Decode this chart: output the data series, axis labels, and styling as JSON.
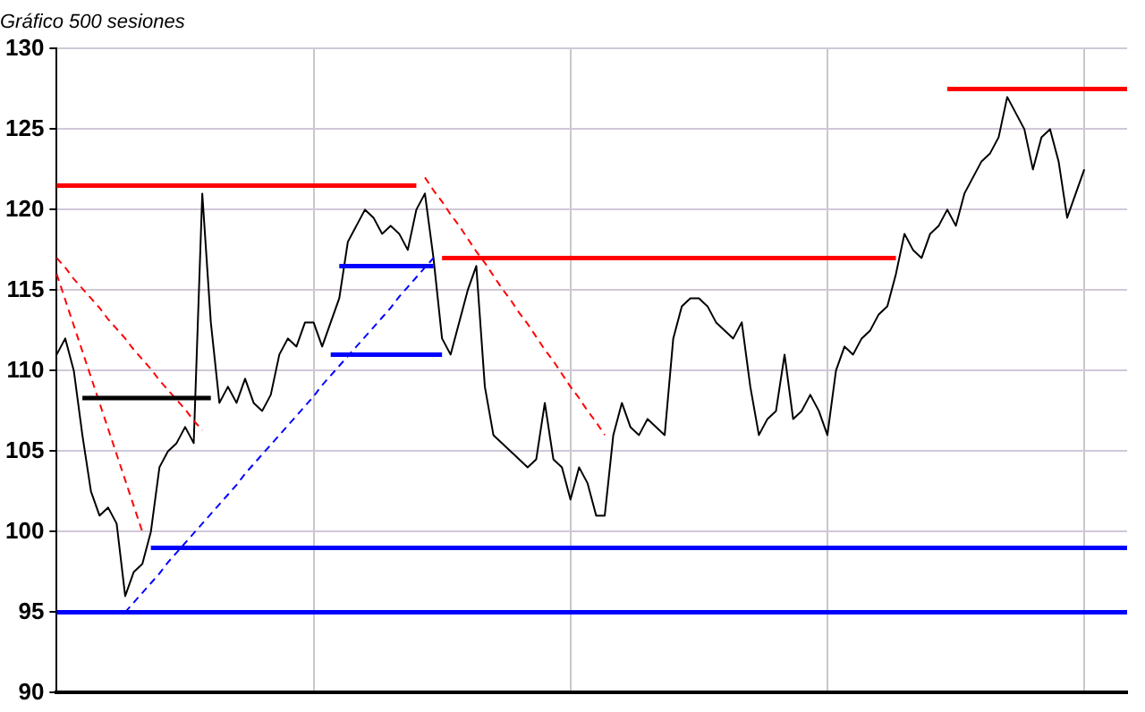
{
  "chart_data": {
    "type": "line",
    "title": "Gráfico 500 sesiones",
    "categories": [
      null,
      null,
      null,
      null,
      null,
      null,
      null,
      null,
      null,
      null,
      null,
      null,
      null,
      null,
      null,
      null,
      null,
      null,
      null,
      null,
      null,
      null,
      null,
      null,
      null,
      null,
      null,
      null,
      null,
      null,
      null,
      null,
      null,
      null,
      null,
      null,
      null,
      null,
      null,
      null,
      null,
      null,
      null,
      null,
      null,
      null,
      null,
      null,
      null,
      null,
      null,
      null,
      null,
      null,
      null,
      null,
      null,
      null,
      null,
      null,
      null,
      null,
      null,
      null,
      null,
      null,
      null,
      null,
      null,
      null,
      null,
      null,
      null,
      null,
      null,
      null,
      null,
      null,
      null,
      null,
      null,
      null,
      null,
      null,
      null,
      null,
      null,
      null,
      null,
      null,
      null,
      null,
      null,
      null,
      null,
      null,
      null,
      null,
      null,
      null,
      null,
      null,
      null,
      null,
      null,
      null,
      null,
      null,
      null,
      null,
      null,
      null,
      null,
      null,
      null,
      null,
      null,
      null,
      null,
      null,
      null,
      null,
      null,
      null,
      null,
      null
    ],
    "series": [
      {
        "color": "#000000",
        "values": [
          111,
          112,
          110,
          106,
          102.5,
          101,
          101.5,
          100.5,
          96,
          97.5,
          98,
          100,
          104,
          105,
          105.5,
          106.5,
          105.5,
          121,
          113,
          108,
          109,
          108,
          109.5,
          108,
          107.5,
          108.5,
          111,
          112,
          111.5,
          113,
          113,
          111.5,
          113,
          114.5,
          118,
          119,
          120,
          119.5,
          118.5,
          119,
          118.5,
          117.5,
          120,
          121,
          117,
          112,
          111,
          113,
          115,
          116.5,
          109,
          106,
          105.5,
          105,
          104.5,
          104,
          104.5,
          108,
          104.5,
          104,
          102,
          104,
          103,
          101,
          101,
          106,
          108,
          106.5,
          106,
          107,
          106.5,
          106,
          112,
          114,
          114.5,
          114.5,
          114,
          113,
          112.5,
          112,
          113,
          109,
          106,
          107,
          107.5,
          111,
          107,
          107.5,
          108.5,
          107.5,
          106,
          110,
          111.5,
          111,
          112,
          112.5,
          113.5,
          114,
          116,
          118.5,
          117.5,
          117,
          118.5,
          119,
          120,
          119,
          121,
          122,
          123,
          123.5,
          124.5,
          127,
          126,
          125,
          122.5,
          124.5,
          125,
          123,
          119.5,
          121,
          122.5,
          null,
          null,
          null,
          null,
          null
        ]
      },
      {
        "color": "#ff0000",
        "values": [
          121.5,
          121.5,
          121.5,
          121.5,
          121.5,
          121.5,
          121.5,
          121.5,
          121.5,
          121.5,
          121.5,
          121.5,
          121.5,
          121.5,
          121.5,
          121.5,
          121.5,
          121.5,
          121.5,
          121.5,
          121.5,
          121.5,
          121.5,
          121.5,
          121.5,
          121.5,
          121.5,
          121.5,
          121.5,
          121.5,
          121.5,
          121.5,
          121.5,
          121.5,
          121.5,
          121.5,
          121.5,
          121.5,
          121.5,
          121.5,
          121.5,
          121.5,
          121.5,
          null,
          null,
          null,
          null,
          null,
          null,
          null,
          null,
          null,
          null,
          null,
          null,
          null,
          null,
          null,
          null,
          null,
          null,
          null,
          null,
          null,
          null,
          null,
          null,
          null,
          null,
          null,
          null,
          null,
          null,
          null,
          null,
          null,
          null,
          null,
          null,
          null,
          null,
          null,
          null,
          null,
          null,
          null,
          null,
          null,
          null,
          null,
          null,
          null,
          null,
          null,
          null,
          null,
          null,
          null,
          null,
          null,
          null,
          null,
          null,
          null,
          null,
          null,
          null,
          null,
          null,
          null,
          null,
          null,
          null,
          null,
          null,
          null,
          null,
          null,
          null,
          null,
          null,
          null,
          null,
          null,
          null,
          null
        ]
      },
      {
        "color": "#ff0000",
        "values": [
          null,
          null,
          null,
          null,
          null,
          null,
          null,
          null,
          null,
          null,
          null,
          null,
          null,
          null,
          null,
          null,
          null,
          null,
          null,
          null,
          null,
          null,
          null,
          null,
          null,
          null,
          null,
          null,
          null,
          null,
          null,
          null,
          null,
          null,
          null,
          null,
          null,
          null,
          null,
          null,
          null,
          null,
          null,
          null,
          null,
          117,
          117,
          117,
          117,
          117,
          117,
          117,
          117,
          117,
          117,
          117,
          117,
          117,
          117,
          117,
          117,
          117,
          117,
          117,
          117,
          117,
          117,
          117,
          117,
          117,
          117,
          117,
          117,
          117,
          117,
          117,
          117,
          117,
          117,
          117,
          117,
          117,
          117,
          117,
          117,
          117,
          117,
          117,
          117,
          117,
          117,
          117,
          117,
          117,
          117,
          117,
          117,
          117,
          117,
          null,
          null,
          null,
          null,
          null,
          null,
          null,
          null,
          null,
          null,
          null,
          null,
          null,
          null,
          null,
          null,
          null,
          null,
          null,
          null,
          null,
          null,
          null,
          null,
          null,
          null,
          null
        ]
      },
      {
        "color": "#ff0000",
        "values": [
          null,
          null,
          null,
          null,
          null,
          null,
          null,
          null,
          null,
          null,
          null,
          null,
          null,
          null,
          null,
          null,
          null,
          null,
          null,
          null,
          null,
          null,
          null,
          null,
          null,
          null,
          null,
          null,
          null,
          null,
          null,
          null,
          null,
          null,
          null,
          null,
          null,
          null,
          null,
          null,
          null,
          null,
          null,
          null,
          null,
          null,
          null,
          null,
          null,
          null,
          null,
          null,
          null,
          null,
          null,
          null,
          null,
          null,
          null,
          null,
          null,
          null,
          null,
          null,
          null,
          null,
          null,
          null,
          null,
          null,
          null,
          null,
          null,
          null,
          null,
          null,
          null,
          null,
          null,
          null,
          null,
          null,
          null,
          null,
          null,
          null,
          null,
          null,
          null,
          null,
          null,
          null,
          null,
          null,
          null,
          null,
          null,
          null,
          null,
          null,
          null,
          null,
          null,
          null,
          127.5,
          127.5,
          127.5,
          127.5,
          127.5,
          127.5,
          127.5,
          127.5,
          127.5,
          127.5,
          127.5,
          127.5,
          127.5,
          127.5,
          127.5,
          127.5,
          127.5,
          127.5,
          127.5,
          127.5,
          127.5,
          127.5
        ]
      },
      {
        "color": "#0000ff",
        "values": [
          null,
          null,
          null,
          null,
          null,
          null,
          null,
          null,
          null,
          null,
          null,
          null,
          null,
          null,
          null,
          null,
          null,
          null,
          null,
          null,
          null,
          null,
          null,
          null,
          null,
          null,
          null,
          null,
          null,
          null,
          null,
          null,
          111,
          111,
          111,
          111,
          111,
          111,
          111,
          111,
          111,
          111,
          111,
          111,
          111,
          111,
          null,
          null,
          null,
          null,
          null,
          null,
          null,
          null,
          null,
          null,
          null,
          null,
          null,
          null,
          null,
          null,
          null,
          null,
          null,
          null,
          null,
          null,
          null,
          null,
          null,
          null,
          null,
          null,
          null,
          null,
          null,
          null,
          null,
          null,
          null,
          null,
          null,
          null,
          null,
          null,
          null,
          null,
          null,
          null,
          null,
          null,
          null,
          null,
          null,
          null,
          null,
          null,
          null,
          null,
          null,
          null,
          null,
          null,
          null,
          null,
          null,
          null,
          null,
          null,
          null,
          null,
          null,
          null,
          null,
          null,
          null,
          null,
          null,
          null,
          null,
          null,
          null,
          null,
          null,
          null
        ]
      },
      {
        "color": "#0000ff",
        "values": [
          null,
          null,
          null,
          null,
          null,
          null,
          null,
          null,
          null,
          null,
          null,
          null,
          null,
          null,
          null,
          null,
          null,
          null,
          null,
          null,
          null,
          null,
          null,
          null,
          null,
          null,
          null,
          null,
          null,
          null,
          null,
          null,
          null,
          116.5,
          116.5,
          116.5,
          116.5,
          116.5,
          116.5,
          116.5,
          116.5,
          116.5,
          116.5,
          116.5,
          116.5,
          null,
          null,
          null,
          null,
          null,
          null,
          null,
          null,
          null,
          null,
          null,
          null,
          null,
          null,
          null,
          null,
          null,
          null,
          null,
          null,
          null,
          null,
          null,
          null,
          null,
          null,
          null,
          null,
          null,
          null,
          null,
          null,
          null,
          null,
          null,
          null,
          null,
          null,
          null,
          null,
          null,
          null,
          null,
          null,
          null,
          null,
          null,
          null,
          null,
          null,
          null,
          null,
          null,
          null,
          null,
          null,
          null,
          null,
          null,
          null,
          null,
          null,
          null,
          null,
          null,
          null,
          null,
          null,
          null,
          null,
          null,
          null,
          null,
          null,
          null,
          null,
          null,
          null,
          null,
          null,
          null
        ]
      },
      {
        "color": "#0000ff",
        "values": [
          null,
          null,
          null,
          null,
          null,
          null,
          null,
          null,
          null,
          null,
          null,
          99,
          99,
          99,
          99,
          99,
          99,
          99,
          99,
          99,
          99,
          99,
          99,
          99,
          99,
          99,
          99,
          99,
          99,
          99,
          99,
          99,
          99,
          99,
          99,
          99,
          99,
          99,
          99,
          99,
          99,
          99,
          99,
          99,
          99,
          99,
          99,
          99,
          99,
          99,
          99,
          99,
          99,
          99,
          99,
          99,
          99,
          99,
          99,
          99,
          99,
          99,
          99,
          99,
          99,
          99,
          99,
          99,
          99,
          99,
          99,
          99,
          99,
          99,
          99,
          99,
          99,
          99,
          99,
          99,
          99,
          99,
          99,
          99,
          99,
          99,
          99,
          99,
          99,
          99,
          99,
          99,
          99,
          99,
          99,
          99,
          99,
          99,
          99,
          99,
          99,
          99,
          99,
          99,
          99,
          99,
          99,
          99,
          99,
          99,
          99,
          99,
          99,
          99,
          99,
          99,
          99,
          99,
          99,
          99,
          99,
          99,
          99,
          99,
          99,
          99
        ]
      },
      {
        "color": "#0000ff",
        "values": [
          95,
          95,
          95,
          95,
          95,
          95,
          95,
          95,
          95,
          95,
          95,
          95,
          95,
          95,
          95,
          95,
          95,
          95,
          95,
          95,
          95,
          95,
          95,
          95,
          95,
          95,
          95,
          95,
          95,
          95,
          95,
          95,
          95,
          95,
          95,
          95,
          95,
          95,
          95,
          95,
          95,
          95,
          95,
          95,
          95,
          95,
          95,
          95,
          95,
          95,
          95,
          95,
          95,
          95,
          95,
          95,
          95,
          95,
          95,
          95,
          95,
          95,
          95,
          95,
          95,
          95,
          95,
          95,
          95,
          95,
          95,
          95,
          95,
          95,
          95,
          95,
          95,
          95,
          95,
          95,
          95,
          95,
          95,
          95,
          95,
          95,
          95,
          95,
          95,
          95,
          95,
          95,
          95,
          95,
          95,
          95,
          95,
          95,
          95,
          95,
          95,
          95,
          95,
          95,
          95,
          95,
          95,
          95,
          95,
          95,
          95,
          95,
          95,
          95,
          95,
          95,
          95,
          95,
          95,
          95,
          95,
          95,
          95,
          95,
          95,
          95
        ]
      },
      {
        "color": "#000000",
        "values": [
          null,
          null,
          null,
          108.3,
          108.3,
          108.3,
          108.3,
          108.3,
          108.3,
          108.3,
          108.3,
          108.3,
          108.3,
          108.3,
          108.3,
          108.3,
          108.3,
          108.3,
          108.3,
          null,
          null,
          null,
          null,
          null,
          null,
          null,
          null,
          null,
          null,
          null,
          null,
          null,
          null,
          null,
          null,
          null,
          null,
          null,
          null,
          null,
          null,
          null,
          null,
          null,
          null,
          null,
          null,
          null,
          null,
          null,
          null,
          null,
          null,
          null,
          null,
          null,
          null,
          null,
          null,
          null,
          null,
          null,
          null,
          null,
          null,
          null,
          null,
          null,
          null,
          null,
          null,
          null,
          null,
          null,
          null,
          null,
          null,
          null,
          null,
          null,
          null,
          null,
          null,
          null,
          null,
          null,
          null,
          null,
          null,
          null,
          null,
          null,
          null,
          null,
          null,
          null,
          null,
          null,
          null,
          null,
          null,
          null,
          null,
          null,
          null,
          null,
          null,
          null,
          null,
          null,
          null,
          null,
          null,
          null,
          null,
          null,
          null,
          null,
          null,
          null,
          null,
          null,
          null,
          null,
          null,
          null
        ]
      },
      {
        "color": "#ff0000",
        "line_style": "dashed",
        "values": [
          117,
          116.4,
          115.7,
          115.1,
          114.5,
          113.9,
          113.2,
          112.6,
          112,
          111.3,
          110.7,
          110.1,
          109.4,
          108.8,
          108.2,
          107.6,
          106.9,
          106.3,
          null,
          null,
          null,
          null,
          null,
          null,
          null,
          null,
          null,
          null,
          null,
          null,
          null,
          null,
          null,
          null,
          null,
          null,
          null,
          null,
          null,
          null,
          null,
          null,
          null,
          null,
          null,
          null,
          null,
          null,
          null,
          null,
          null,
          null,
          null,
          null,
          null,
          null,
          null,
          null,
          null,
          null,
          null,
          null,
          null,
          null,
          null,
          null,
          null,
          null,
          null,
          null,
          null,
          null,
          null,
          null,
          null,
          null,
          null,
          null,
          null,
          null,
          null,
          null,
          null,
          null,
          null,
          null,
          null,
          null,
          null,
          null,
          null,
          null,
          null,
          null,
          null,
          null,
          null,
          null,
          null,
          null,
          null,
          null,
          null,
          null,
          null,
          null,
          null,
          null,
          null,
          null,
          null,
          null,
          null,
          null,
          null,
          null,
          null,
          null,
          null,
          null,
          null,
          null,
          null,
          null,
          null,
          null
        ]
      },
      {
        "color": "#ff0000",
        "line_style": "dashed",
        "values": [
          116,
          114.4,
          112.8,
          111.2,
          109.6,
          108,
          106.4,
          104.8,
          103.2,
          101.6,
          100,
          null,
          null,
          null,
          null,
          null,
          null,
          null,
          null,
          null,
          null,
          null,
          null,
          null,
          null,
          null,
          null,
          null,
          null,
          null,
          null,
          null,
          null,
          null,
          null,
          null,
          null,
          null,
          null,
          null,
          null,
          null,
          null,
          null,
          null,
          null,
          null,
          null,
          null,
          null,
          null,
          null,
          null,
          null,
          null,
          null,
          null,
          null,
          null,
          null,
          null,
          null,
          null,
          null,
          null,
          null,
          null,
          null,
          null,
          null,
          null,
          null,
          null,
          null,
          null,
          null,
          null,
          null,
          null,
          null,
          null,
          null,
          null,
          null,
          null,
          null,
          null,
          null,
          null,
          null,
          null,
          null,
          null,
          null,
          null,
          null,
          null,
          null,
          null,
          null,
          null,
          null,
          null,
          null,
          null,
          null,
          null,
          null,
          null,
          null,
          null,
          null,
          null,
          null,
          null,
          null,
          null,
          null,
          null,
          null,
          null,
          null,
          null,
          null,
          null,
          null
        ]
      },
      {
        "color": "#ff0000",
        "line_style": "dashed",
        "values": [
          null,
          null,
          null,
          null,
          null,
          null,
          null,
          null,
          null,
          null,
          null,
          null,
          null,
          null,
          null,
          null,
          null,
          null,
          null,
          null,
          null,
          null,
          null,
          null,
          null,
          null,
          null,
          null,
          null,
          null,
          null,
          null,
          null,
          null,
          null,
          null,
          null,
          null,
          null,
          null,
          null,
          null,
          null,
          122,
          121.2,
          120.5,
          119.7,
          119,
          118.2,
          117.4,
          116.7,
          115.9,
          115.1,
          114.4,
          113.6,
          112.9,
          112.1,
          111.3,
          110.6,
          109.8,
          109,
          108.3,
          107.5,
          106.8,
          106,
          null,
          null,
          null,
          null,
          null,
          null,
          null,
          null,
          null,
          null,
          null,
          null,
          null,
          null,
          null,
          null,
          null,
          null,
          null,
          null,
          null,
          null,
          null,
          null,
          null,
          null,
          null,
          null,
          null,
          null,
          null,
          null,
          null,
          null,
          null,
          null,
          null,
          null,
          null,
          null,
          null,
          null,
          null,
          null,
          null,
          null,
          null,
          null,
          null,
          null,
          null,
          null,
          null,
          null,
          null,
          null,
          null,
          null,
          null,
          null,
          null
        ]
      },
      {
        "color": "#0000ff",
        "line_style": "dashed",
        "values": [
          null,
          null,
          null,
          null,
          null,
          null,
          null,
          null,
          95,
          95.6,
          96.2,
          96.8,
          97.4,
          98.1,
          98.7,
          99.3,
          99.9,
          100.5,
          101.1,
          101.7,
          102.3,
          102.9,
          103.6,
          104.2,
          104.8,
          105.4,
          106,
          106.6,
          107.2,
          107.8,
          108.4,
          109.1,
          109.7,
          110.3,
          110.9,
          111.5,
          112.1,
          112.7,
          113.3,
          113.9,
          114.6,
          115.2,
          115.8,
          116.4,
          117,
          null,
          null,
          null,
          null,
          null,
          null,
          null,
          null,
          null,
          null,
          null,
          null,
          null,
          null,
          null,
          null,
          null,
          null,
          null,
          null,
          null,
          null,
          null,
          null,
          null,
          null,
          null,
          null,
          null,
          null,
          null,
          null,
          null,
          null,
          null,
          null,
          null,
          null,
          null,
          null,
          null,
          null,
          null,
          null,
          null,
          null,
          null,
          null,
          null,
          null,
          null,
          null,
          null,
          null,
          null,
          null,
          null,
          null,
          null,
          null,
          null,
          null,
          null,
          null,
          null,
          null,
          null,
          null,
          null,
          null,
          null,
          null,
          null,
          null,
          null,
          null,
          null,
          null,
          null,
          null,
          null
        ]
      }
    ],
    "ylim": [
      90,
      130
    ],
    "yticks": [
      90,
      95,
      100,
      105,
      110,
      115,
      120,
      125,
      130
    ],
    "tick_labels": "y",
    "grid": true,
    "legend": false,
    "marker": "none",
    "line_style": "solid"
  }
}
